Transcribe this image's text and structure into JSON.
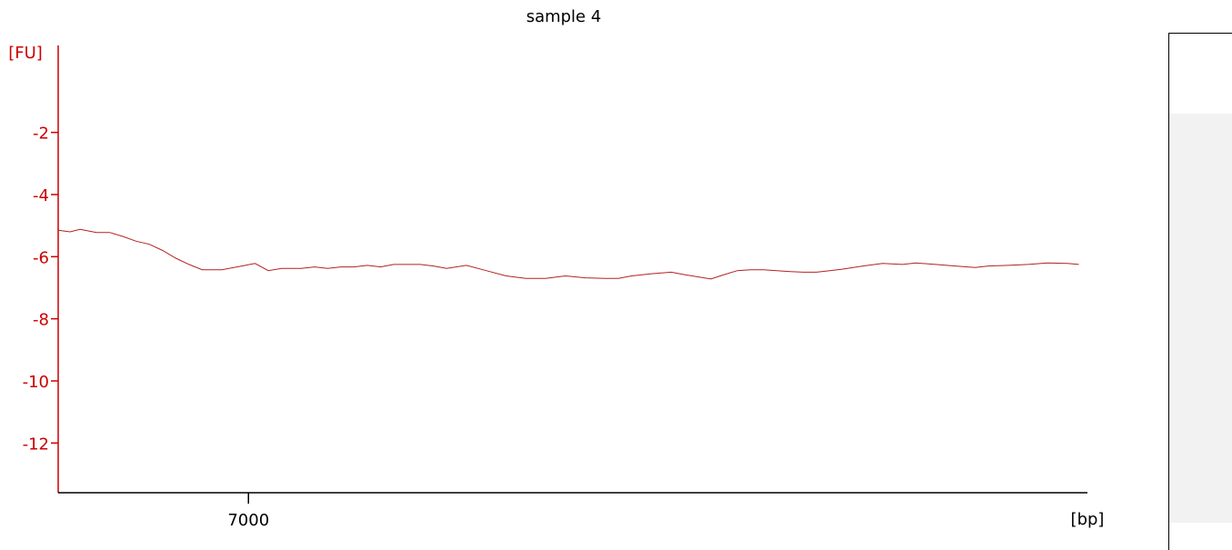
{
  "chart_data": {
    "type": "line",
    "title": "sample 4",
    "ylabel": "[FU]",
    "xlabel": "[bp]",
    "xlim": [
      6712,
      8270
    ],
    "ylim": [
      -13.6,
      0.8
    ],
    "yticks": [
      -2,
      -4,
      -6,
      -8,
      -10,
      -12
    ],
    "xticks": [
      7000
    ],
    "grid": false,
    "legend": "none",
    "colors": {
      "axis": "#cc0000",
      "line": "#b22222",
      "text": "#000000"
    },
    "series": [
      {
        "x": [
          6712,
          6730,
          6745,
          6770,
          6790,
          6810,
          6830,
          6850,
          6870,
          6890,
          6910,
          6930,
          6960,
          6990,
          7010,
          7030,
          7050,
          7070,
          7080,
          7100,
          7120,
          7140,
          7160,
          7180,
          7200,
          7220,
          7240,
          7260,
          7280,
          7300,
          7330,
          7360,
          7390,
          7420,
          7450,
          7480,
          7510,
          7540,
          7560,
          7580,
          7610,
          7640,
          7660,
          7680,
          7700,
          7720,
          7740,
          7760,
          7780,
          7800,
          7820,
          7840,
          7860,
          7880,
          7900,
          7930,
          7960,
          7990,
          8010,
          8040,
          8070,
          8100,
          8120,
          8150,
          8180,
          8210,
          8240,
          8257
        ],
        "values": [
          -5.15,
          -5.2,
          -5.12,
          -5.22,
          -5.22,
          -5.35,
          -5.5,
          -5.6,
          -5.8,
          -6.05,
          -6.25,
          -6.42,
          -6.42,
          -6.3,
          -6.22,
          -6.45,
          -6.38,
          -6.38,
          -6.38,
          -6.33,
          -6.38,
          -6.33,
          -6.33,
          -6.28,
          -6.33,
          -6.25,
          -6.25,
          -6.25,
          -6.3,
          -6.38,
          -6.28,
          -6.45,
          -6.62,
          -6.7,
          -6.7,
          -6.62,
          -6.68,
          -6.7,
          -6.7,
          -6.62,
          -6.55,
          -6.5,
          -6.58,
          -6.65,
          -6.72,
          -6.58,
          -6.45,
          -6.42,
          -6.42,
          -6.45,
          -6.48,
          -6.5,
          -6.5,
          -6.45,
          -6.4,
          -6.3,
          -6.22,
          -6.25,
          -6.2,
          -6.25,
          -6.3,
          -6.35,
          -6.3,
          -6.28,
          -6.25,
          -6.2,
          -6.22,
          -6.25
        ]
      }
    ]
  }
}
